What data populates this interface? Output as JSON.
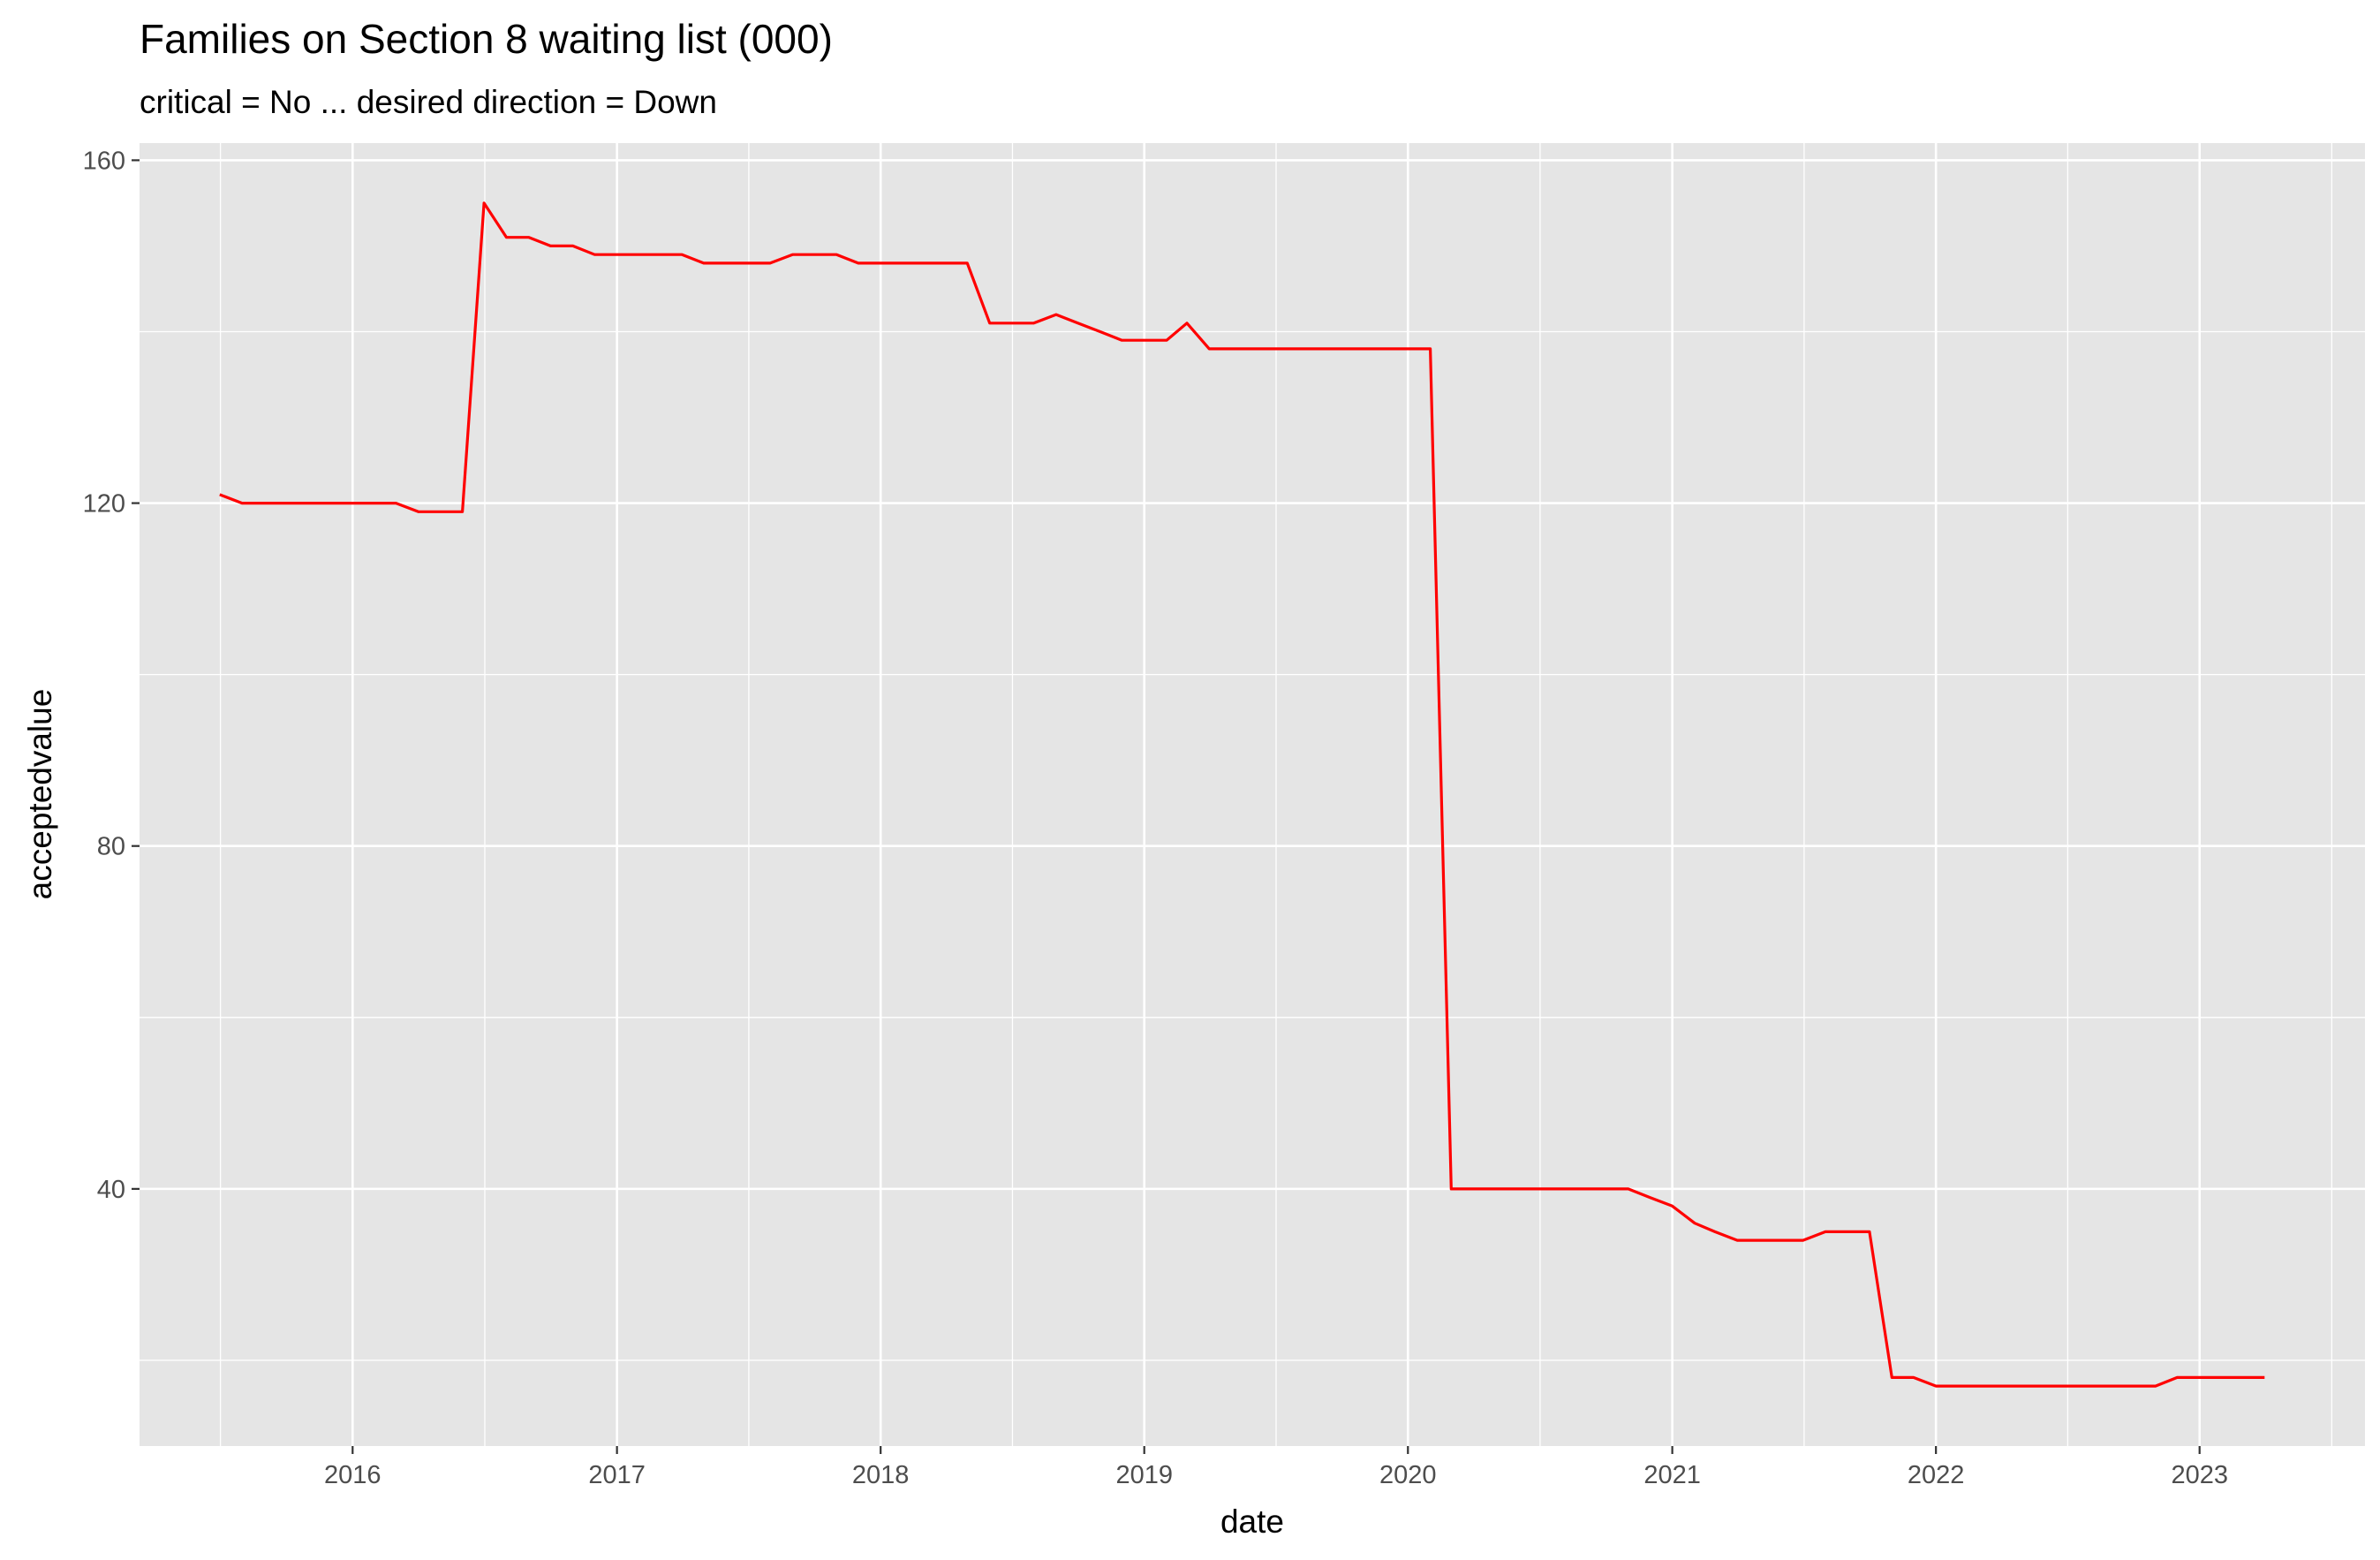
{
  "chart_data": {
    "type": "line",
    "title": "Families on Section 8 waiting list (000)",
    "subtitle": "critical = No ... desired direction = Down",
    "xlabel": "date",
    "ylabel": "acceptedvalue",
    "x_ticks": [
      "2016",
      "2017",
      "2018",
      "2019",
      "2020",
      "2021",
      "2022",
      "2023"
    ],
    "y_ticks": [
      "40",
      "80",
      "120",
      "160"
    ],
    "xlim": [
      "2015-03-12",
      "2023-08-18"
    ],
    "ylim": [
      10,
      162
    ],
    "grid": true,
    "line_color": "#ff0000",
    "panel_color": "#e5e5e5",
    "series": [
      {
        "points": [
          [
            "2015-07-01",
            121
          ],
          [
            "2015-08-01",
            120
          ],
          [
            "2015-09-01",
            120
          ],
          [
            "2015-10-01",
            120
          ],
          [
            "2015-11-01",
            120
          ],
          [
            "2015-12-01",
            120
          ],
          [
            "2016-01-01",
            120
          ],
          [
            "2016-02-01",
            120
          ],
          [
            "2016-03-01",
            120
          ],
          [
            "2016-04-01",
            119
          ],
          [
            "2016-05-01",
            119
          ],
          [
            "2016-06-01",
            119
          ],
          [
            "2016-07-01",
            155
          ],
          [
            "2016-08-01",
            151
          ],
          [
            "2016-09-01",
            151
          ],
          [
            "2016-10-01",
            150
          ],
          [
            "2016-11-01",
            150
          ],
          [
            "2016-12-01",
            149
          ],
          [
            "2017-01-01",
            149
          ],
          [
            "2017-02-01",
            149
          ],
          [
            "2017-03-01",
            149
          ],
          [
            "2017-04-01",
            149
          ],
          [
            "2017-05-01",
            148
          ],
          [
            "2017-06-01",
            148
          ],
          [
            "2017-07-01",
            148
          ],
          [
            "2017-08-01",
            148
          ],
          [
            "2017-09-01",
            149
          ],
          [
            "2017-10-01",
            149
          ],
          [
            "2017-11-01",
            149
          ],
          [
            "2017-12-01",
            148
          ],
          [
            "2018-01-01",
            148
          ],
          [
            "2018-02-01",
            148
          ],
          [
            "2018-03-01",
            148
          ],
          [
            "2018-04-01",
            148
          ],
          [
            "2018-05-01",
            148
          ],
          [
            "2018-06-01",
            141
          ],
          [
            "2018-07-01",
            141
          ],
          [
            "2018-08-01",
            141
          ],
          [
            "2018-09-01",
            142
          ],
          [
            "2018-10-01",
            141
          ],
          [
            "2018-11-01",
            140
          ],
          [
            "2018-12-01",
            139
          ],
          [
            "2019-01-01",
            139
          ],
          [
            "2019-02-01",
            139
          ],
          [
            "2019-03-01",
            141
          ],
          [
            "2019-04-01",
            138
          ],
          [
            "2019-05-01",
            138
          ],
          [
            "2019-06-01",
            138
          ],
          [
            "2019-07-01",
            138
          ],
          [
            "2019-08-01",
            138
          ],
          [
            "2019-09-01",
            138
          ],
          [
            "2019-10-01",
            138
          ],
          [
            "2019-11-01",
            138
          ],
          [
            "2019-12-01",
            138
          ],
          [
            "2020-01-01",
            138
          ],
          [
            "2020-02-01",
            138
          ],
          [
            "2020-03-01",
            40
          ],
          [
            "2020-04-01",
            40
          ],
          [
            "2020-05-01",
            40
          ],
          [
            "2020-06-01",
            40
          ],
          [
            "2020-07-01",
            40
          ],
          [
            "2020-08-01",
            40
          ],
          [
            "2020-09-01",
            40
          ],
          [
            "2020-10-01",
            40
          ],
          [
            "2020-11-01",
            40
          ],
          [
            "2020-12-01",
            39
          ],
          [
            "2021-01-01",
            38
          ],
          [
            "2021-02-01",
            36
          ],
          [
            "2021-03-01",
            35
          ],
          [
            "2021-04-01",
            34
          ],
          [
            "2021-05-01",
            34
          ],
          [
            "2021-06-01",
            34
          ],
          [
            "2021-07-01",
            34
          ],
          [
            "2021-08-01",
            35
          ],
          [
            "2021-09-01",
            35
          ],
          [
            "2021-10-01",
            35
          ],
          [
            "2021-11-01",
            18
          ],
          [
            "2021-12-01",
            18
          ],
          [
            "2022-01-01",
            17
          ],
          [
            "2022-02-01",
            17
          ],
          [
            "2022-03-01",
            17
          ],
          [
            "2022-04-01",
            17
          ],
          [
            "2022-05-01",
            17
          ],
          [
            "2022-06-01",
            17
          ],
          [
            "2022-07-01",
            17
          ],
          [
            "2022-08-01",
            17
          ],
          [
            "2022-09-01",
            17
          ],
          [
            "2022-10-01",
            17
          ],
          [
            "2022-11-01",
            17
          ],
          [
            "2022-12-01",
            18
          ],
          [
            "2023-01-01",
            18
          ],
          [
            "2023-02-01",
            18
          ],
          [
            "2023-03-01",
            18
          ],
          [
            "2023-04-01",
            18
          ]
        ]
      }
    ]
  }
}
